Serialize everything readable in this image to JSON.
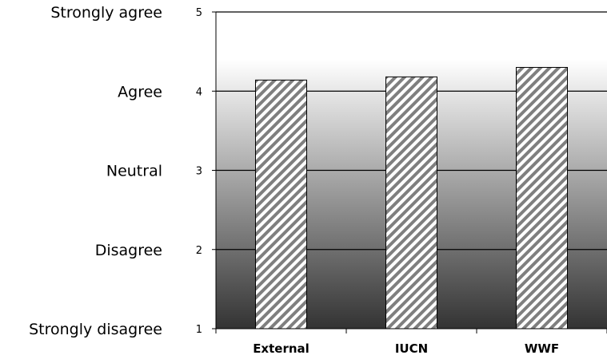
{
  "chart_data": {
    "type": "bar",
    "categories": [
      "External",
      "IUCN",
      "WWF"
    ],
    "values": [
      4.14,
      4.18,
      4.3
    ],
    "ylim": [
      1,
      5
    ],
    "yticks": [
      1,
      2,
      3,
      4,
      5
    ],
    "likert_labels": [
      "Strongly disagree",
      "Disagree",
      "Neutral",
      "Agree",
      "Strongly agree"
    ],
    "grid": true,
    "bar_fill": "diagonal-hatch",
    "colors": {
      "bar_hatch": "#7f7f7f",
      "bar_fill": "#ffffff",
      "bar_outline": "#000000",
      "gradient_top": "#ffffff",
      "gradient_bottom": "#333333",
      "gridline": "#000000"
    }
  }
}
